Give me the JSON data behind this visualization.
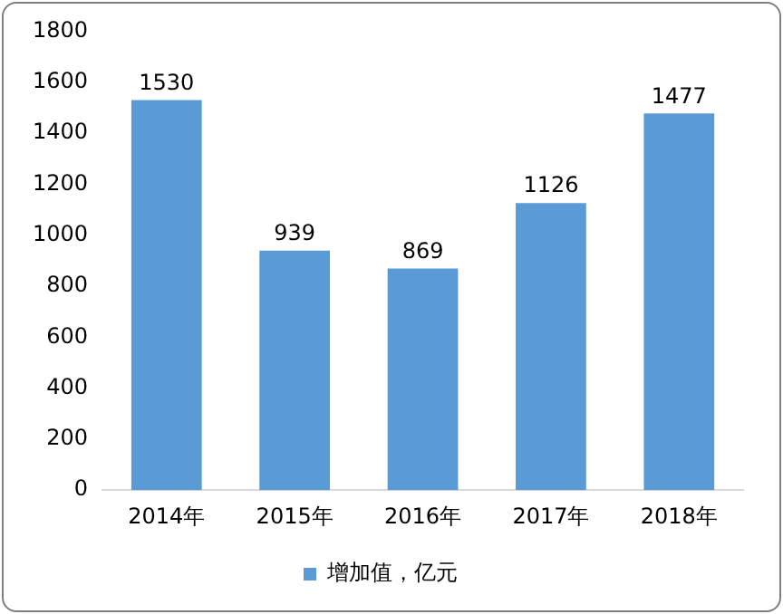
{
  "chart_data": {
    "type": "bar",
    "categories": [
      "2014年",
      "2015年",
      "2016年",
      "2017年",
      "2018年"
    ],
    "series": [
      {
        "name": "增加值，亿元",
        "color": "#5b9bd5",
        "values": [
          1530,
          939,
          869,
          1126,
          1477
        ]
      }
    ],
    "ylim": [
      0,
      1800
    ],
    "yticks": [
      0,
      200,
      400,
      600,
      800,
      1000,
      1200,
      1400,
      1600,
      1800
    ],
    "grid": false,
    "legend": "bottom",
    "data_labels": true
  }
}
